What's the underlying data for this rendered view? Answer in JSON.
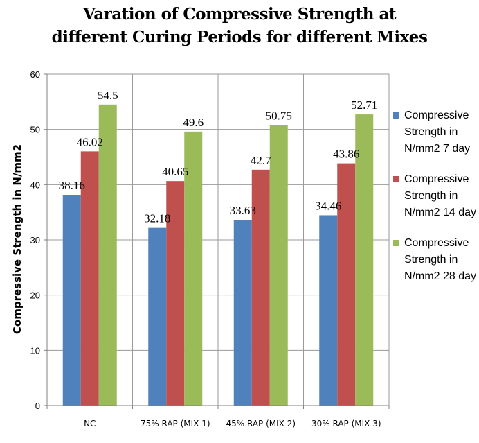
{
  "chart_data": {
    "type": "bar",
    "title_lines": [
      "Varation of Compressive Strength at",
      "different Curing Periods for different Mixes"
    ],
    "ylabel": "Compressive Strength in N/mm2",
    "xlabel": "",
    "ylim": [
      0,
      60
    ],
    "yticks": [
      "0",
      "10",
      "20",
      "30",
      "40",
      "50",
      "60"
    ],
    "grid": true,
    "legend_position": "right",
    "categories": [
      "NC",
      "75% RAP (MIX 1)",
      "45% RAP (MIX 2)",
      "30% RAP (MIX 3)"
    ],
    "series": [
      {
        "name": "Compressive Strength in N/mm2 7 day",
        "color": "#4F81BD",
        "values": [
          38.16,
          32.18,
          33.63,
          34.46
        ],
        "labels": [
          "38.16",
          "32.18",
          "33.63",
          "34.46"
        ]
      },
      {
        "name": "Compressive Strength in N/mm2 14 day",
        "color": "#C0504D",
        "values": [
          46.02,
          40.65,
          42.7,
          43.86
        ],
        "labels": [
          "46.02",
          "40.65",
          "42.7",
          "43.86"
        ]
      },
      {
        "name": "Compressive Strength in N/mm2 28 day",
        "color": "#9BBB59",
        "values": [
          54.5,
          49.6,
          50.75,
          52.71
        ],
        "labels": [
          "54.5",
          "49.6",
          "50.75",
          "52.71"
        ]
      }
    ]
  }
}
